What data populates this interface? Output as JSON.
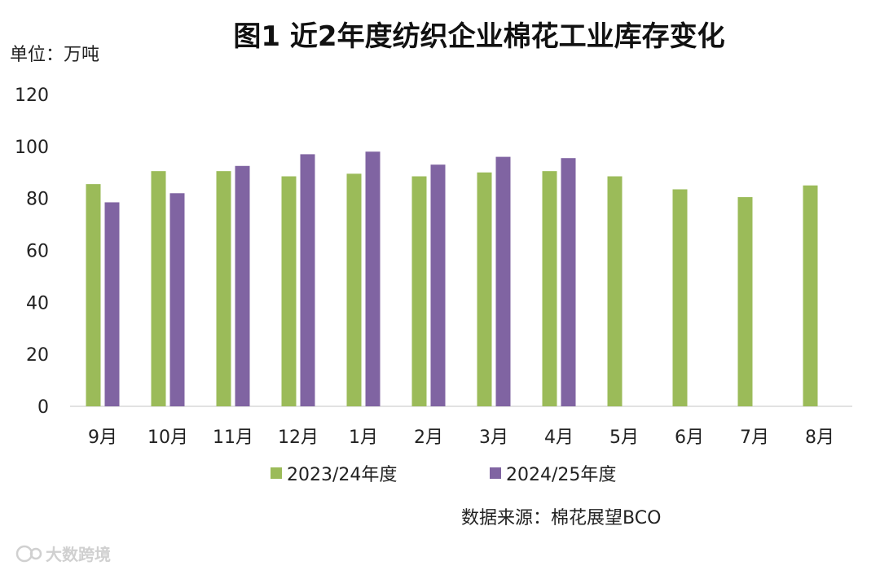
{
  "chart_data": {
    "type": "bar",
    "title": "图1  近2年度纺织企业棉花工业库存变化",
    "unit_label": "单位：万吨",
    "categories": [
      "9月",
      "10月",
      "11月",
      "12月",
      "1月",
      "2月",
      "3月",
      "4月",
      "5月",
      "6月",
      "7月",
      "8月"
    ],
    "series": [
      {
        "name": "2023/24年度",
        "color": "#9BBB59",
        "values": [
          85.5,
          90.5,
          90.5,
          88.5,
          89.5,
          88.5,
          90,
          90.5,
          88.5,
          83.5,
          80.5,
          85
        ]
      },
      {
        "name": "2024/25年度",
        "color": "#8064A2",
        "values": [
          78.5,
          82,
          92.5,
          97,
          98,
          93,
          96,
          95.5,
          null,
          null,
          null,
          null
        ]
      }
    ],
    "ylim": [
      0,
      120
    ],
    "yticks": [
      0,
      20,
      40,
      60,
      80,
      100,
      120
    ],
    "grid": false,
    "legend_position": "bottom",
    "source": "数据来源：棉花展望BCO"
  },
  "watermark": {
    "text": "大数跨境",
    "icon": "watermark-logo-icon"
  }
}
